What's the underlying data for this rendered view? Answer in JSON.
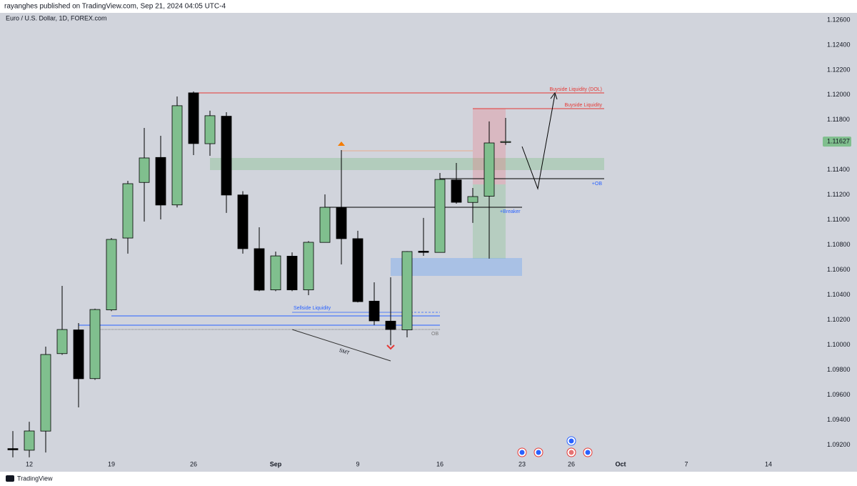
{
  "header": "rayanghes published on TradingView.com, Sep 21, 2024 04:05 UTC-4",
  "footer": "TradingView",
  "chart_data": {
    "type": "candlestick",
    "title": "Euro / U.S. Dollar, 1D, FOREX.com",
    "categories": [
      null,
      "12",
      null,
      null,
      null,
      null,
      "19",
      null,
      null,
      null,
      null,
      "26",
      null,
      null,
      null,
      null,
      "Sep",
      null,
      null,
      null,
      null,
      "9",
      null,
      null,
      null,
      null,
      "16",
      null,
      null,
      null,
      null,
      "23",
      null,
      null,
      "26",
      null,
      null,
      "Oct",
      null,
      null,
      null,
      "7",
      null,
      null,
      null,
      null,
      "14"
    ],
    "open": [
      1.0917,
      1.09157,
      1.0931,
      1.0993,
      1.1012,
      1.0973,
      1.1028,
      1.10855,
      1.113,
      1.115,
      1.1112,
      1.12017,
      1.1161,
      1.1183,
      1.112,
      1.1077,
      1.1044,
      1.1071,
      1.1044,
      1.1082,
      1.111,
      1.1085,
      1.1035,
      1.1019,
      1.1012,
      1.1075,
      1.1074,
      1.1132,
      1.1114,
      1.1119,
      1.1162,
      null,
      null,
      null,
      null,
      null,
      null,
      null,
      null,
      null,
      null,
      null,
      null,
      null,
      null,
      null,
      null
    ],
    "high": [
      1.0931,
      1.09385,
      1.09986,
      1.10472,
      1.10175,
      1.1029,
      1.10855,
      1.11313,
      1.11736,
      1.11673,
      1.11988,
      1.12028,
      1.11874,
      1.11862,
      1.1123,
      1.10941,
      1.10747,
      1.1074,
      1.1083,
      1.11204,
      1.11559,
      1.10913,
      1.10501,
      1.10541,
      1.1075,
      1.11016,
      1.11376,
      1.11456,
      1.11256,
      1.11788,
      1.11816,
      null,
      null,
      null,
      null,
      null,
      null,
      null,
      null,
      null,
      null,
      null,
      null,
      null,
      null,
      null,
      null
    ],
    "low": [
      1.091,
      1.091,
      1.09139,
      1.0992,
      1.095,
      1.0972,
      1.1027,
      1.1073,
      1.10987,
      1.11004,
      1.111,
      1.11519,
      1.11513,
      1.11056,
      1.1073,
      1.1043,
      1.1043,
      1.1043,
      1.10398,
      1.1082,
      1.10644,
      1.1034,
      1.10158,
      1.09997,
      1.1006,
      1.10712,
      1.1074,
      1.1113,
      1.10976,
      1.1069,
      1.116,
      null,
      null,
      null,
      null,
      null,
      null,
      null,
      null,
      null,
      null,
      null,
      null,
      null,
      null,
      null,
      null
    ],
    "close": [
      1.0916,
      1.09311,
      1.09923,
      1.10123,
      1.09729,
      1.10283,
      1.10844,
      1.1129,
      1.11496,
      1.11119,
      1.11914,
      1.11611,
      1.11834,
      1.11199,
      1.1077,
      1.10438,
      1.10712,
      1.1044,
      1.10821,
      1.11101,
      1.1085,
      1.10346,
      1.10192,
      1.10123,
      1.10747,
      1.1074,
      1.11324,
      1.11141,
      1.11187,
      1.11616,
      1.11627,
      null,
      null,
      null,
      null,
      null,
      null,
      null,
      null,
      null,
      null,
      null,
      null,
      null,
      null,
      null,
      null
    ],
    "up_color": "#80bf8e",
    "down_color": "#000000",
    "ylim": [
      1.12657,
      1.08985
    ],
    "yticks": [
      {
        "value": 1.126,
        "label": "1.12600"
      },
      {
        "value": 1.124,
        "label": "1.12400"
      },
      {
        "value": 1.122,
        "label": "1.12200"
      },
      {
        "value": 1.12,
        "label": "1.12000"
      },
      {
        "value": 1.118,
        "label": "1.11800"
      },
      {
        "value": 1.116,
        "label": "1.11600"
      },
      {
        "value": 1.114,
        "label": "1.11400"
      },
      {
        "value": 1.112,
        "label": "1.11200"
      },
      {
        "value": 1.11,
        "label": "1.11000"
      },
      {
        "value": 1.108,
        "label": "1.10800"
      },
      {
        "value": 1.106,
        "label": "1.10600"
      },
      {
        "value": 1.104,
        "label": "1.10400"
      },
      {
        "value": 1.102,
        "label": "1.10200"
      },
      {
        "value": 1.1,
        "label": "1.10000"
      },
      {
        "value": 1.098,
        "label": "1.09800"
      },
      {
        "value": 1.096,
        "label": "1.09600"
      },
      {
        "value": 1.094,
        "label": "1.09400"
      },
      {
        "value": 1.092,
        "label": "1.09200"
      }
    ],
    "grid": false,
    "annotations": [
      "Buyside Liquidity (DOL)",
      "Buyside Liquidity",
      "+OB",
      "+Breaker",
      "Sellside Liquidity",
      "OB",
      "SMT"
    ]
  }
}
